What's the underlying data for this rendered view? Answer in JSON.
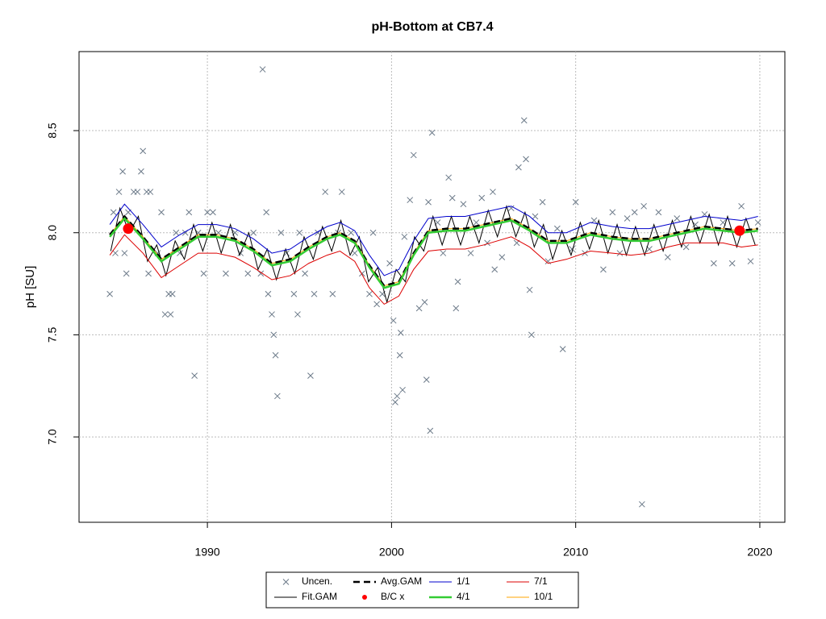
{
  "chart_data": {
    "type": "line",
    "title": "pH-Bottom at CB7.4",
    "y_label": "pH [SU]",
    "xlim": [
      1983.03,
      2021.36
    ],
    "ylim": [
      6.582,
      8.887
    ],
    "xticks": [
      1990,
      2000,
      2010,
      2020
    ],
    "yticks": [
      {
        "value": 7,
        "label": "7.0"
      },
      7.5,
      {
        "value": 8,
        "label": "8.0"
      },
      8.5
    ],
    "grid": true,
    "legend": "bottom",
    "x": [
      1984.7,
      1985.5,
      1986.5,
      1987.5,
      1988.5,
      1989.5,
      1990.5,
      1991.5,
      1992.5,
      1993.5,
      1994.5,
      1995.5,
      1996.5,
      1997.2,
      1998,
      1998.8,
      1999.6,
      2000.4,
      2001.2,
      2002,
      2003,
      2004,
      2005,
      2006.5,
      2007.5,
      2008.5,
      2009.5,
      2010.8,
      2012,
      2013,
      2014,
      2015,
      2016,
      2017,
      2018,
      2019,
      2019.9
    ],
    "series": [
      {
        "name": "Uncen.",
        "style": "cross",
        "color": "#6c7a89",
        "x": [
          1984.7,
          1984.9,
          1985.0,
          1985.2,
          1985.4,
          1985.5,
          1985.6,
          1985.7,
          1986.0,
          1986.2,
          1986.4,
          1986.5,
          1986.7,
          1986.9,
          1986.8,
          1987.3,
          1987.5,
          1987.7,
          1987.9,
          1988.0,
          1988.1,
          1988.3,
          1988.5,
          1988.8,
          1989.0,
          1989.3,
          1989.5,
          1989.8,
          1990.0,
          1990.3,
          1990.6,
          1991.0,
          1991.5,
          1991.8,
          1992.2,
          1992.5,
          1992.9,
          1993.2,
          1993.0,
          1993.3,
          1993.5,
          1993.6,
          1993.7,
          1993.8,
          1994.0,
          1994.3,
          1994.7,
          1994.9,
          1995.0,
          1995.3,
          1995.6,
          1995.8,
          1996.0,
          1996.4,
          1996.8,
          1997.1,
          1997.3,
          1997.8,
          1998.0,
          1998.4,
          1998.8,
          1999.0,
          1999.2,
          1999.5,
          1999.9,
          2000.1,
          2000.2,
          2000.3,
          2000.5,
          2000.6,
          2000.45,
          2000.7,
          2001.0,
          2001.2,
          2001.5,
          2001.8,
          2001.9,
          2002.0,
          2002.1,
          2002.2,
          2002.5,
          2002.8,
          2003.1,
          2003.3,
          2003.6,
          2003.5,
          2003.9,
          2004.3,
          2004.6,
          2004.9,
          2005.2,
          2005.5,
          2005.6,
          2006.0,
          2006.5,
          2006.8,
          2006.9,
          2007.2,
          2007.3,
          2007.5,
          2007.6,
          2007.8,
          2008.2,
          2008.5,
          2009.0,
          2009.3,
          2009.8,
          2010.0,
          2010.5,
          2011.0,
          2011.5,
          2012.0,
          2012.4,
          2012.8,
          2013.2,
          2013.6,
          2013.7,
          2014.0,
          2014.5,
          2015.0,
          2015.5,
          2016.0,
          2016.5,
          2017.0,
          2017.5,
          2018.0,
          2018.5,
          2019.0,
          2019.5,
          2019.9
        ],
        "values": [
          7.7,
          8.1,
          7.9,
          8.2,
          8.3,
          7.9,
          7.8,
          8.1,
          8.2,
          8.2,
          8.3,
          8.4,
          8.2,
          8.2,
          7.8,
          7.9,
          8.1,
          7.6,
          7.7,
          7.6,
          7.7,
          8.0,
          7.9,
          8.0,
          8.1,
          7.3,
          8.0,
          7.8,
          8.1,
          8.1,
          8.0,
          7.8,
          8.0,
          7.9,
          7.8,
          8.0,
          7.8,
          8.1,
          8.8,
          7.7,
          7.6,
          7.5,
          7.4,
          7.2,
          8.0,
          7.9,
          7.7,
          7.6,
          8.0,
          7.8,
          7.3,
          7.7,
          8.0,
          8.2,
          7.7,
          8.0,
          8.2,
          8.0,
          7.9,
          7.8,
          7.7,
          8.0,
          7.65,
          7.7,
          7.85,
          7.57,
          7.17,
          7.2,
          7.51,
          7.23,
          7.4,
          7.98,
          8.16,
          8.38,
          7.63,
          7.66,
          7.28,
          8.15,
          7.03,
          8.49,
          8.05,
          7.9,
          8.27,
          8.17,
          7.76,
          7.63,
          8.14,
          7.9,
          8.05,
          8.17,
          7.95,
          8.2,
          7.82,
          7.88,
          8.12,
          7.95,
          8.32,
          8.55,
          8.36,
          7.72,
          7.5,
          8.08,
          8.15,
          7.86,
          8.02,
          7.43,
          7.92,
          8.15,
          7.9,
          8.06,
          7.82,
          8.1,
          7.9,
          8.07,
          8.1,
          6.67,
          8.13,
          7.92,
          8.1,
          7.88,
          8.07,
          7.93,
          8.04,
          8.09,
          7.85,
          8.05,
          7.85,
          8.13,
          7.86,
          8.05
        ]
      },
      {
        "name": "Fit.GAM",
        "style": "solid",
        "color": "#000000",
        "x": [
          1984.75,
          1985.25,
          1985.75,
          1986.25,
          1986.75,
          1987.25,
          1987.75,
          1988.25,
          1988.75,
          1989.25,
          1989.75,
          1990.25,
          1990.75,
          1991.25,
          1991.75,
          1992.25,
          1992.75,
          1993.25,
          1993.75,
          1994.25,
          1994.75,
          1995.25,
          1995.75,
          1996.25,
          1996.75,
          1997.25,
          1997.75,
          1998.25,
          1998.75,
          1999.25,
          1999.75,
          2000.25,
          2000.75,
          2001.25,
          2001.75,
          2002.25,
          2002.75,
          2003.25,
          2003.75,
          2004.25,
          2004.75,
          2005.25,
          2005.75,
          2006.25,
          2006.75,
          2007.25,
          2007.75,
          2008.25,
          2008.75,
          2009.25,
          2009.75,
          2010.25,
          2010.75,
          2011.25,
          2011.75,
          2012.25,
          2012.75,
          2013.25,
          2013.75,
          2014.25,
          2014.75,
          2015.25,
          2015.75,
          2016.25,
          2016.75,
          2017.25,
          2017.75,
          2018.25,
          2018.75,
          2019.25,
          2019.75
        ],
        "values": [
          7.91,
          8.12,
          8.0,
          8.08,
          7.86,
          7.94,
          7.79,
          7.96,
          7.87,
          8.04,
          7.91,
          8.05,
          7.9,
          8.04,
          7.89,
          8.0,
          7.82,
          7.92,
          7.77,
          7.92,
          7.8,
          7.98,
          7.87,
          8.03,
          7.91,
          8.06,
          7.89,
          7.98,
          7.76,
          7.83,
          7.66,
          7.82,
          7.76,
          7.98,
          7.91,
          8.08,
          7.94,
          8.08,
          7.94,
          8.08,
          7.95,
          8.11,
          7.98,
          8.13,
          7.98,
          8.1,
          7.93,
          8.04,
          7.87,
          8.01,
          7.89,
          8.05,
          7.92,
          8.06,
          7.9,
          8.04,
          7.89,
          8.03,
          7.89,
          8.04,
          7.91,
          8.06,
          7.93,
          8.08,
          7.95,
          8.09,
          7.94,
          8.08,
          7.93,
          8.07,
          7.94
        ]
      },
      {
        "name": "Avg.GAM",
        "style": "dashed",
        "color": "#000000",
        "values": [
          7.99,
          8.08,
          7.98,
          7.87,
          7.93,
          7.99,
          7.99,
          7.97,
          7.92,
          7.85,
          7.87,
          7.93,
          7.98,
          8.0,
          7.96,
          7.84,
          7.74,
          7.76,
          7.9,
          8.01,
          8.02,
          8.02,
          8.04,
          8.07,
          8.02,
          7.96,
          7.96,
          8.0,
          7.98,
          7.97,
          7.97,
          7.99,
          8.01,
          8.03,
          8.02,
          8.01,
          8.02
        ]
      },
      {
        "name": "B/C x",
        "style": "dot",
        "color": "#ff0000",
        "x": [
          1985.7,
          2018.9
        ],
        "values": [
          8.02,
          8.01
        ]
      },
      {
        "name": "1/1",
        "style": "solid",
        "color": "#0000cc",
        "values": [
          8.04,
          8.14,
          8.04,
          7.93,
          7.99,
          8.04,
          8.04,
          8.02,
          7.97,
          7.9,
          7.92,
          7.98,
          8.03,
          8.05,
          8.01,
          7.89,
          7.79,
          7.82,
          7.96,
          8.07,
          8.08,
          8.08,
          8.1,
          8.13,
          8.08,
          8.0,
          8.0,
          8.05,
          8.03,
          8.02,
          8.02,
          8.04,
          8.06,
          8.08,
          8.07,
          8.06,
          8.08
        ]
      },
      {
        "name": "4/1",
        "style": "thick",
        "color": "#33cc33",
        "values": [
          7.98,
          8.07,
          7.97,
          7.86,
          7.92,
          7.98,
          7.98,
          7.96,
          7.91,
          7.84,
          7.86,
          7.92,
          7.97,
          7.99,
          7.95,
          7.83,
          7.73,
          7.75,
          7.89,
          8.0,
          8.01,
          8.01,
          8.03,
          8.06,
          8.01,
          7.95,
          7.95,
          7.99,
          7.97,
          7.96,
          7.96,
          7.98,
          8.0,
          8.02,
          8.01,
          8.0,
          8.01
        ]
      },
      {
        "name": "7/1",
        "style": "solid",
        "color": "#dd0000",
        "values": [
          7.89,
          7.99,
          7.9,
          7.78,
          7.84,
          7.9,
          7.9,
          7.88,
          7.83,
          7.77,
          7.79,
          7.85,
          7.89,
          7.91,
          7.86,
          7.73,
          7.65,
          7.69,
          7.82,
          7.91,
          7.92,
          7.92,
          7.94,
          7.98,
          7.93,
          7.85,
          7.87,
          7.91,
          7.9,
          7.89,
          7.9,
          7.93,
          7.95,
          7.95,
          7.95,
          7.93,
          7.94
        ]
      },
      {
        "name": "10/1",
        "style": "solid",
        "color": "#ffa500",
        "values": [
          7.99,
          8.08,
          7.98,
          7.87,
          7.93,
          7.99,
          7.99,
          7.97,
          7.92,
          7.85,
          7.87,
          7.93,
          7.98,
          8.0,
          7.96,
          7.84,
          7.74,
          7.76,
          7.9,
          8.01,
          8.02,
          8.02,
          8.04,
          8.07,
          8.02,
          7.96,
          7.96,
          8.0,
          7.98,
          7.97,
          7.97,
          7.99,
          8.01,
          8.03,
          8.02,
          8.01,
          8.02
        ]
      }
    ]
  }
}
